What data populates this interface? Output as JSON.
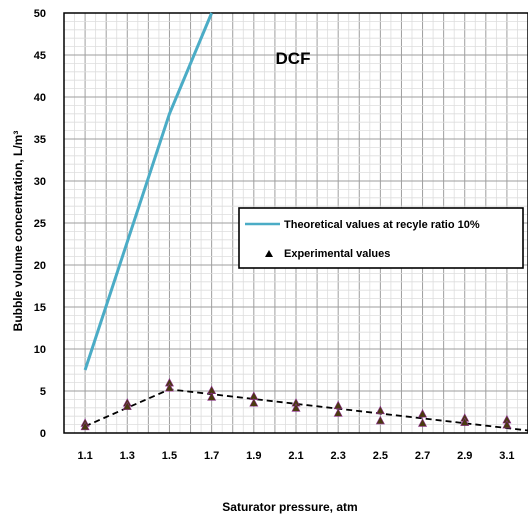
{
  "chart_data": {
    "type": "line",
    "title": "DCF",
    "xlabel": "Saturator pressure, atm",
    "ylabel": "Bubble volume concentration, L/m³",
    "x_ticks": [
      "1.1",
      "1.3",
      "1.5",
      "1.7",
      "1.9",
      "2.1",
      "2.3",
      "2.5",
      "2.7",
      "2.9",
      "3.1"
    ],
    "y_ticks": [
      "0",
      "5",
      "10",
      "15",
      "20",
      "25",
      "30",
      "35",
      "40",
      "45",
      "50"
    ],
    "xlim": [
      1.0,
      3.2
    ],
    "ylim": [
      0,
      50
    ],
    "grid": true,
    "legend_position": "right",
    "series": [
      {
        "name": "Theoretical values at recyle ratio 10%",
        "kind": "line",
        "color": "#4bacc6",
        "x": [
          1.1,
          1.5,
          1.7
        ],
        "y": [
          7.5,
          38,
          50
        ]
      },
      {
        "name": "Experimental values",
        "kind": "markers",
        "color": "#000000",
        "x": [
          1.1,
          1.1,
          1.3,
          1.3,
          1.5,
          1.5,
          1.7,
          1.7,
          1.9,
          1.9,
          2.1,
          2.1,
          2.3,
          2.3,
          2.5,
          2.5,
          2.7,
          2.7,
          2.9,
          2.9,
          3.1,
          3.1
        ],
        "y": [
          1.2,
          0.8,
          3.6,
          3.2,
          6.0,
          5.4,
          5.1,
          4.3,
          4.4,
          3.6,
          3.6,
          3.0,
          3.3,
          2.4,
          2.7,
          1.5,
          2.3,
          1.2,
          1.8,
          1.3,
          1.6,
          1.0
        ]
      },
      {
        "kind": "dashed-trend",
        "color": "#000000",
        "x": [
          1.1,
          1.5,
          3.2
        ],
        "y": [
          0.8,
          5.2,
          0.3
        ]
      }
    ]
  }
}
